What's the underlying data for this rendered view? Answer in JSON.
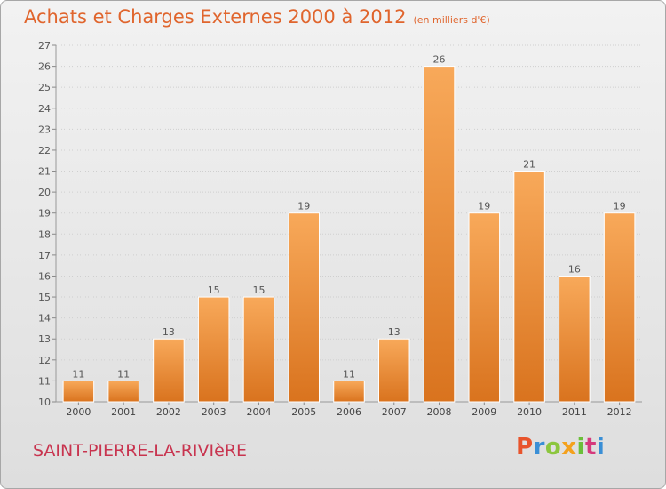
{
  "header": {
    "title": "Achats et Charges Externes 2000 à 2012",
    "unit": "(en milliers d'€)"
  },
  "footer": {
    "commune": "SAINT-PIERRE-LA-RIVIèRE",
    "logo": "Proxiti",
    "logo_colors": [
      "#e8542c",
      "#3a8fd6",
      "#8cc63e",
      "#f4a11d",
      "#6bbf3a",
      "#d63a7c",
      "#3a8fd6"
    ]
  },
  "colors": {
    "bar_light": "#f8a95a",
    "bar_dark": "#d9731e",
    "title": "#e0652d",
    "commune": "#c8344f"
  },
  "chart_data": {
    "type": "bar",
    "title": "Achats et Charges Externes 2000 à 2012",
    "subtitle": "(en milliers d'€)",
    "categories": [
      "2000",
      "2001",
      "2002",
      "2003",
      "2004",
      "2005",
      "2006",
      "2007",
      "2008",
      "2009",
      "2010",
      "2011",
      "2012"
    ],
    "values": [
      11,
      11,
      13,
      15,
      15,
      19,
      11,
      13,
      26,
      19,
      21,
      16,
      19
    ],
    "ylim": [
      10,
      27
    ],
    "yticks": [
      10,
      11,
      12,
      13,
      14,
      15,
      16,
      17,
      18,
      19,
      20,
      21,
      22,
      23,
      24,
      25,
      26,
      27
    ],
    "grid": true,
    "data_labels": true
  }
}
